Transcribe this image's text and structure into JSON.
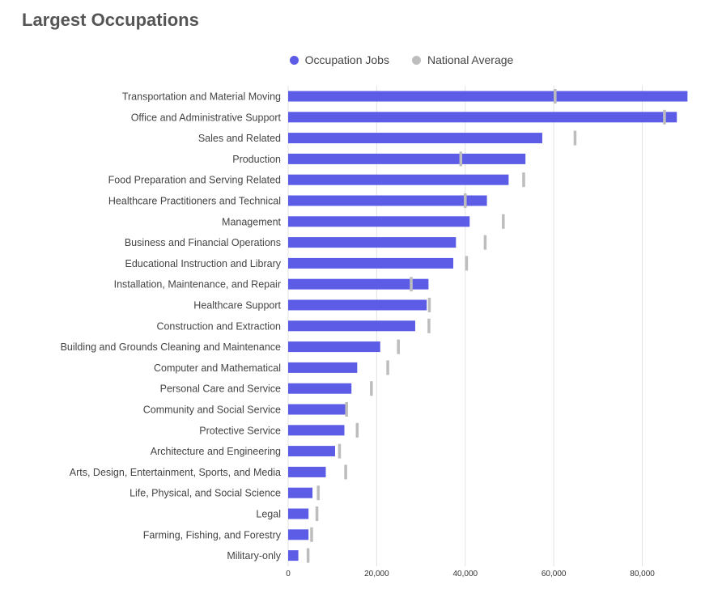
{
  "title": "Largest Occupations",
  "colors": {
    "occupation": "#5c5ce6",
    "national": "#bdbdbd",
    "grid": "#e3e3e3"
  },
  "chart_data": {
    "type": "bar",
    "orientation": "horizontal",
    "title": "Largest Occupations",
    "legend_position": "top-center",
    "grid": true,
    "xlim": [
      0,
      90500
    ],
    "xticks": [
      0,
      20000,
      40000,
      60000,
      80000
    ],
    "xtick_labels": [
      "0",
      "20,000",
      "40,000",
      "60,000",
      "80,000"
    ],
    "categories": [
      "Transportation and Material Moving",
      "Office and Administrative Support",
      "Sales and Related",
      "Production",
      "Food Preparation and Serving Related",
      "Healthcare Practitioners and Technical",
      "Management",
      "Business and Financial Operations",
      "Educational Instruction and Library",
      "Installation, Maintenance, and Repair",
      "Healthcare Support",
      "Construction and Extraction",
      "Building and Grounds Cleaning and Maintenance",
      "Computer and Mathematical",
      "Personal Care and Service",
      "Community and Social Service",
      "Protective Service",
      "Architecture and Engineering",
      "Arts, Design, Entertainment, Sports, and Media",
      "Life, Physical, and Social Science",
      "Legal",
      "Farming, Fishing, and Forestry",
      "Military-only"
    ],
    "series": [
      {
        "name": "Occupation Jobs",
        "values": [
          90200,
          87800,
          57400,
          53600,
          49800,
          44900,
          41000,
          37900,
          37300,
          31700,
          31300,
          28700,
          20800,
          15600,
          14300,
          12900,
          12700,
          10600,
          8500,
          5500,
          4600,
          4600,
          2300
        ]
      },
      {
        "name": "National Average",
        "values": [
          60300,
          85000,
          64800,
          39000,
          53200,
          40000,
          48600,
          44500,
          40300,
          27800,
          31900,
          31800,
          24900,
          22500,
          18800,
          13200,
          15600,
          11600,
          13000,
          6800,
          6500,
          5300,
          4500
        ]
      }
    ]
  }
}
